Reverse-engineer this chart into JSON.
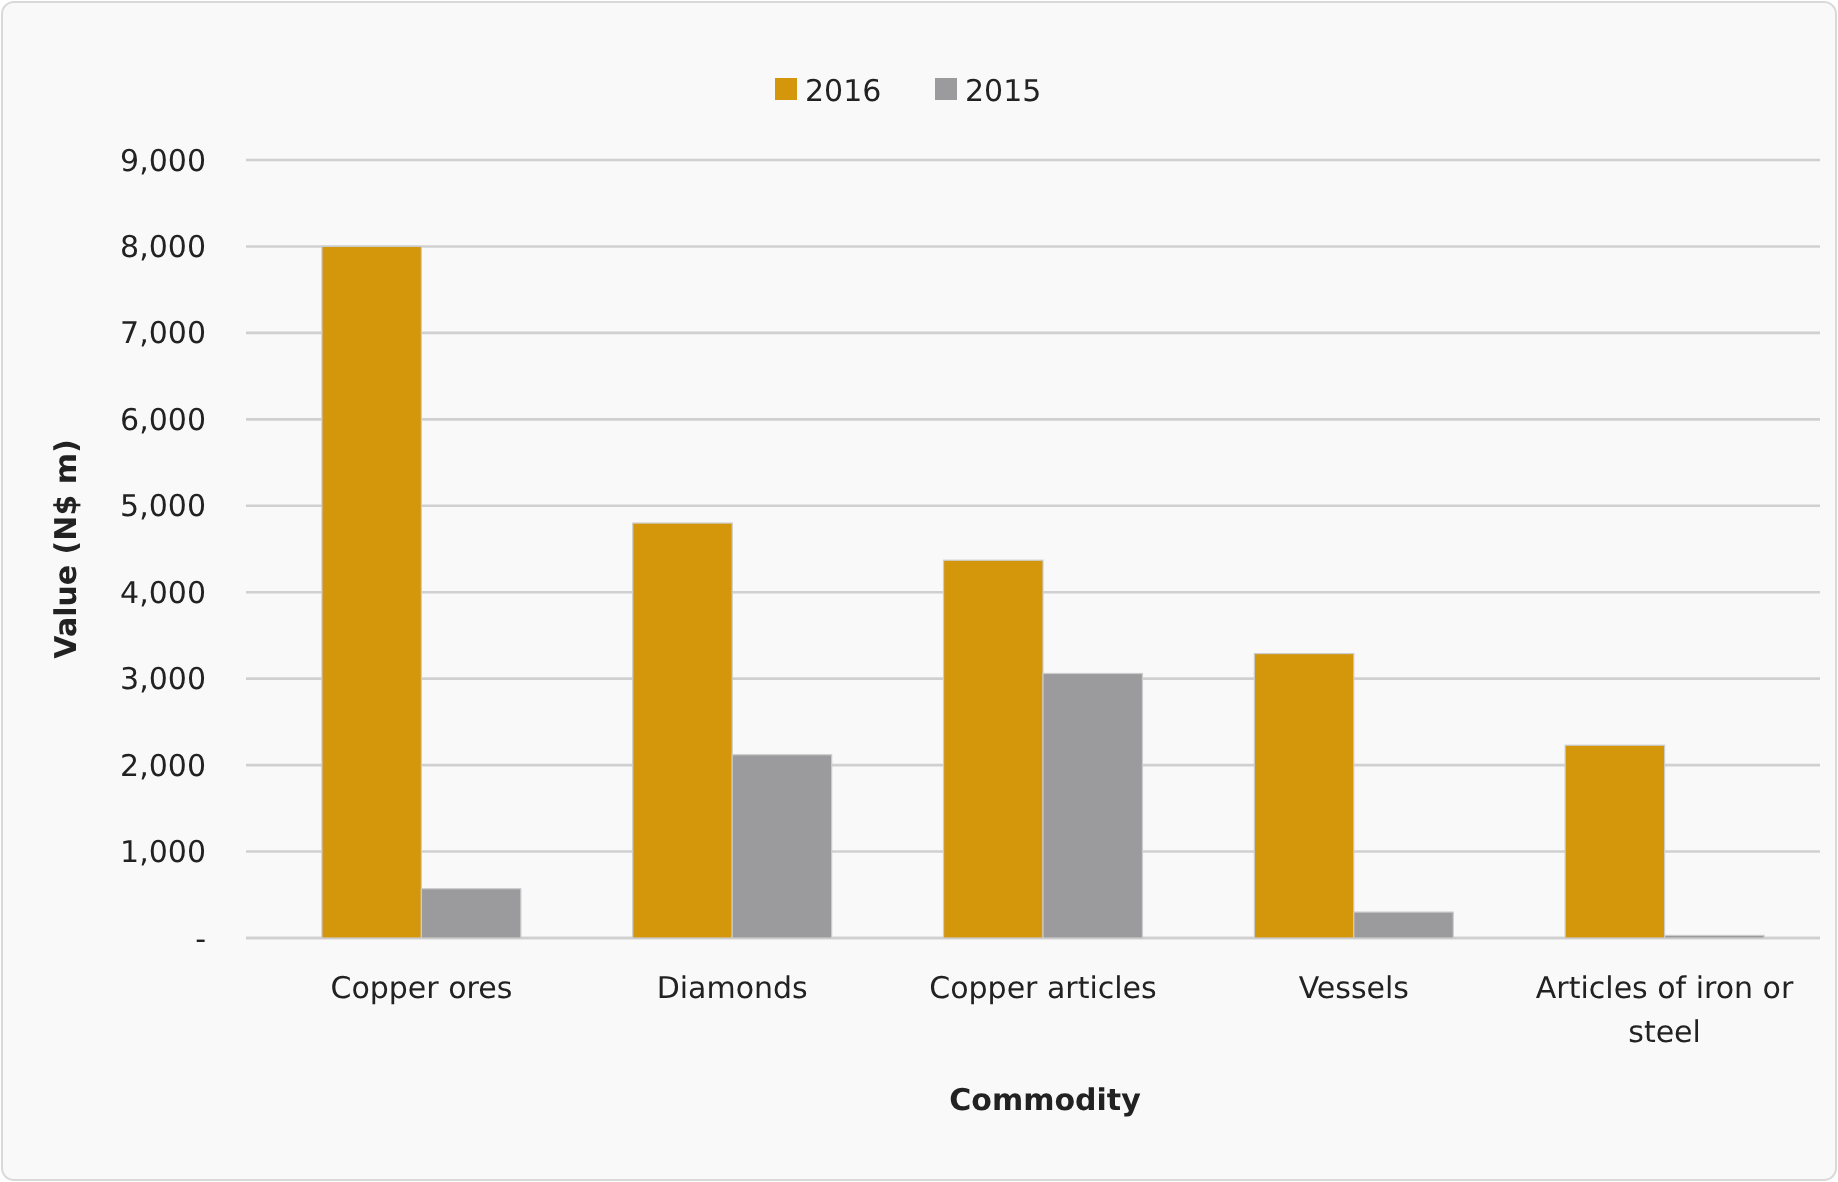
{
  "chart_data": {
    "type": "bar",
    "xlabel": "Commodity",
    "ylabel": "Value (N$ m)",
    "categories": [
      "Copper ores",
      "Diamonds",
      "Copper articles",
      "Vessels",
      "Articles of iron or steel"
    ],
    "series": [
      {
        "name": "2016",
        "color": "#d4960a",
        "values": [
          8000,
          4800,
          4370,
          3290,
          2230
        ]
      },
      {
        "name": "2015",
        "color": "#9b9a9c",
        "values": [
          570,
          2120,
          3060,
          300,
          30
        ]
      }
    ],
    "ylim": [
      0,
      9000
    ],
    "yticks": [
      {
        "value": 0,
        "label": "-"
      },
      {
        "value": 1000,
        "label": "1,000"
      },
      {
        "value": 2000,
        "label": "2,000"
      },
      {
        "value": 3000,
        "label": "3,000"
      },
      {
        "value": 4000,
        "label": "4,000"
      },
      {
        "value": 5000,
        "label": "5,000"
      },
      {
        "value": 6000,
        "label": "6,000"
      },
      {
        "value": 7000,
        "label": "7,000"
      },
      {
        "value": 8000,
        "label": "8,000"
      },
      {
        "value": 9000,
        "label": "9,000"
      }
    ],
    "grid": "y",
    "legend": "top"
  }
}
